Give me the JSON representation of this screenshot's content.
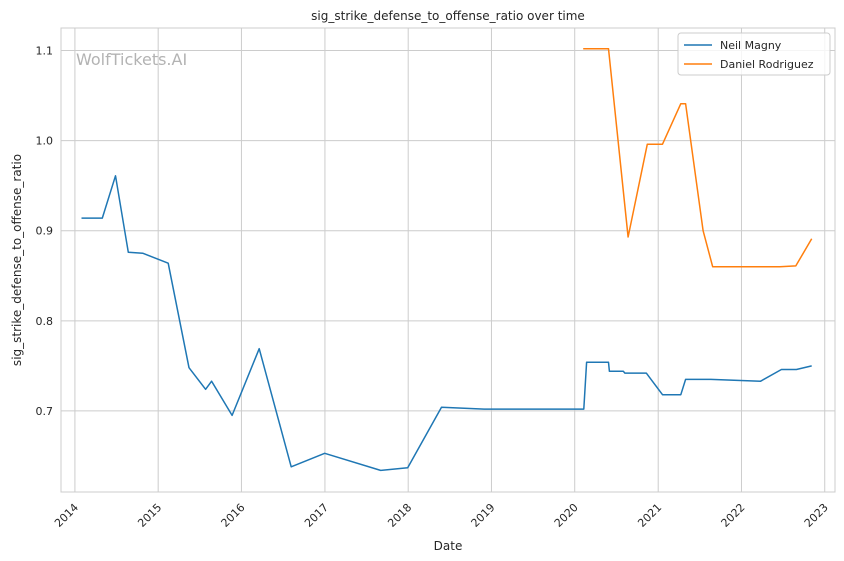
{
  "chart_data": {
    "type": "line",
    "title": "sig_strike_defense_to_offense_ratio over time",
    "xlabel": "Date",
    "ylabel": "sig_strike_defense_to_offense_ratio",
    "watermark": "WolfTickets.AI",
    "xlim": [
      "2013-11-01",
      "2023-02-15"
    ],
    "ylim": [
      0.61,
      1.125
    ],
    "x_ticks": [
      "2014",
      "2015",
      "2016",
      "2017",
      "2018",
      "2019",
      "2020",
      "2021",
      "2022",
      "2023"
    ],
    "y_ticks": [
      "0.7",
      "0.8",
      "0.9",
      "1.0",
      "1.1"
    ],
    "grid": true,
    "legend_position": "top-right",
    "series": [
      {
        "name": "Neil Magny",
        "color": "#1f77b4",
        "points": [
          [
            "2014-01-30",
            0.914
          ],
          [
            "2014-05-01",
            0.914
          ],
          [
            "2014-06-28",
            0.961
          ],
          [
            "2014-08-23",
            0.876
          ],
          [
            "2014-10-25",
            0.875
          ],
          [
            "2015-02-14",
            0.864
          ],
          [
            "2015-05-16",
            0.748
          ],
          [
            "2015-07-28",
            0.724
          ],
          [
            "2015-08-23",
            0.733
          ],
          [
            "2015-11-21",
            0.695
          ],
          [
            "2016-03-19",
            0.769
          ],
          [
            "2016-08-06",
            0.638
          ],
          [
            "2016-12-31",
            0.653
          ],
          [
            "2017-09-02",
            0.634
          ],
          [
            "2017-12-30",
            0.637
          ],
          [
            "2018-05-27",
            0.704
          ],
          [
            "2018-11-30",
            0.702
          ],
          [
            "2020-02-10",
            0.702
          ],
          [
            "2020-02-22",
            0.754
          ],
          [
            "2020-05-28",
            0.754
          ],
          [
            "2020-06-01",
            0.744
          ],
          [
            "2020-08-01",
            0.744
          ],
          [
            "2020-08-08",
            0.742
          ],
          [
            "2020-11-10",
            0.742
          ],
          [
            "2021-01-20",
            0.718
          ],
          [
            "2021-04-10",
            0.718
          ],
          [
            "2021-05-01",
            0.735
          ],
          [
            "2021-08-20",
            0.735
          ],
          [
            "2022-03-26",
            0.733
          ],
          [
            "2022-06-25",
            0.746
          ],
          [
            "2022-08-30",
            0.746
          ],
          [
            "2022-11-05",
            0.75
          ]
        ]
      },
      {
        "name": "Daniel Rodriguez",
        "color": "#ff7f0e",
        "points": [
          [
            "2020-02-07",
            1.102
          ],
          [
            "2020-05-28",
            1.102
          ],
          [
            "2020-08-22",
            0.893
          ],
          [
            "2020-11-14",
            0.996
          ],
          [
            "2021-01-20",
            0.996
          ],
          [
            "2021-04-10",
            1.041
          ],
          [
            "2021-05-01",
            1.041
          ],
          [
            "2021-07-17",
            0.9
          ],
          [
            "2021-08-28",
            0.86
          ],
          [
            "2022-06-18",
            0.86
          ],
          [
            "2022-08-27",
            0.861
          ],
          [
            "2022-11-05",
            0.891
          ]
        ]
      }
    ]
  }
}
